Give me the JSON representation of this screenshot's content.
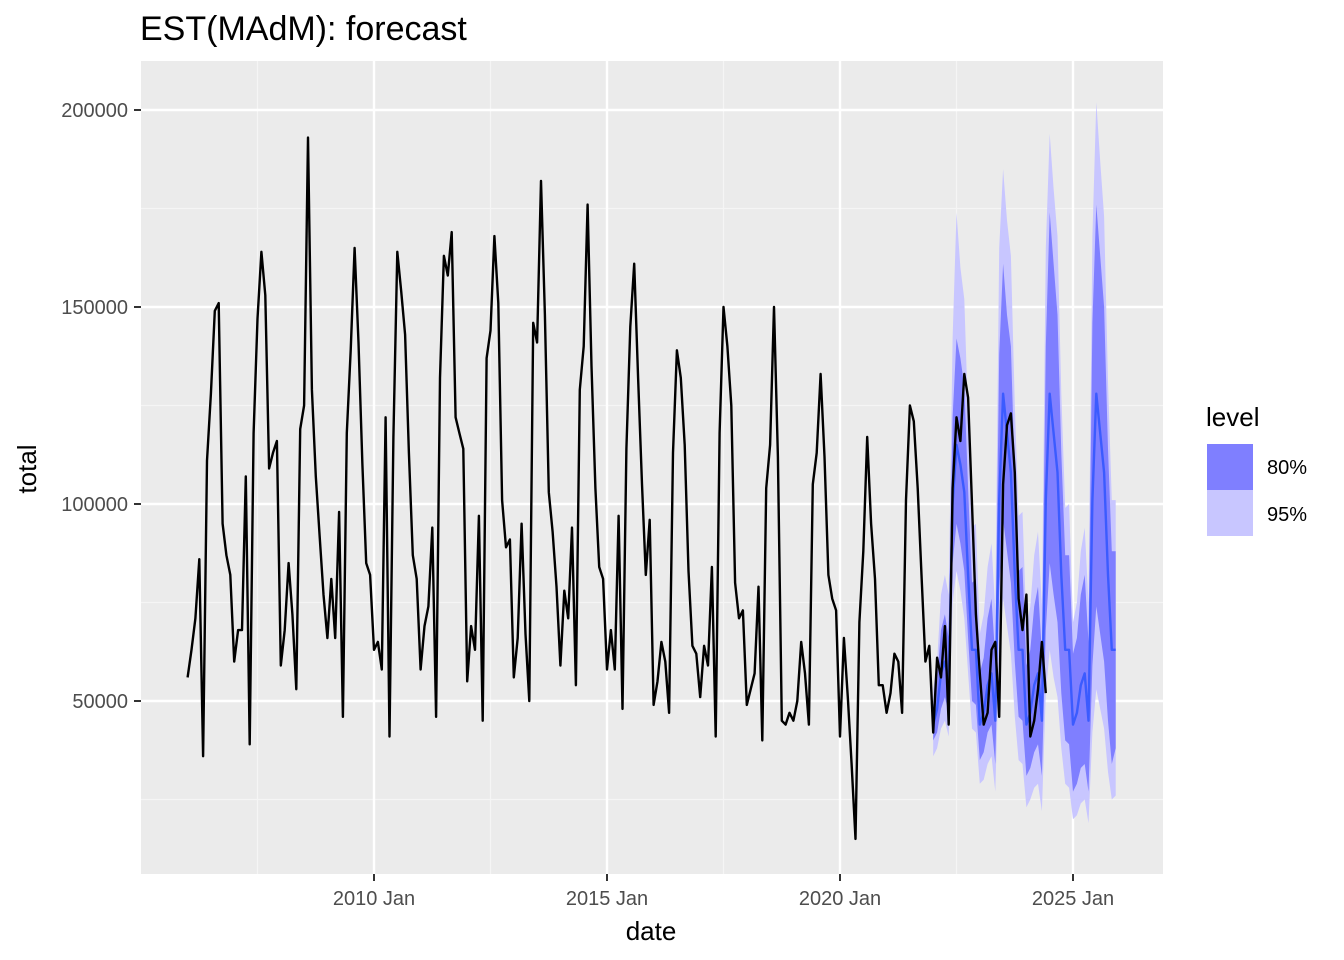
{
  "chart_data": {
    "type": "line",
    "title": "EST(MAdM): forecast",
    "xlabel": "date",
    "ylabel": "total",
    "x_ticks": [
      "2010 Jan",
      "2015 Jan",
      "2020 Jan",
      "2025 Jan"
    ],
    "y_ticks": [
      "50000",
      "100000",
      "150000",
      "200000"
    ],
    "ylim": [
      8000,
      210000
    ],
    "xlim": [
      "2005 Jan",
      "2026 Jun"
    ],
    "grid": true,
    "legend": {
      "title": "level",
      "position": "right",
      "entries": [
        {
          "label": "80%",
          "color": "#7f7fff"
        },
        {
          "label": "95%",
          "color": "#c8c6ff"
        }
      ]
    },
    "colors": {
      "panel": "#ebebeb",
      "grid_major": "#ffffff",
      "grid_minor": "#f5f5f5",
      "history_line": "#000000",
      "forecast_line": "#3b5bff",
      "band_80": "#7f7fff",
      "band_95": "#c8c6ff"
    },
    "history": {
      "start": "2006-01",
      "values": [
        56000,
        63000,
        71000,
        86000,
        36000,
        111000,
        128000,
        149000,
        151000,
        95000,
        87000,
        82000,
        60000,
        68000,
        68000,
        107000,
        39000,
        118000,
        147000,
        164000,
        153000,
        109000,
        113000,
        116000,
        59000,
        68000,
        85000,
        72000,
        53000,
        119000,
        125000,
        193000,
        129000,
        107000,
        92000,
        77000,
        66000,
        81000,
        66000,
        98000,
        46000,
        118000,
        139000,
        165000,
        141000,
        110000,
        85000,
        82000,
        63000,
        65000,
        58000,
        122000,
        41000,
        117000,
        164000,
        154000,
        143000,
        113000,
        87000,
        81000,
        58000,
        69000,
        74000,
        94000,
        46000,
        132000,
        163000,
        158000,
        169000,
        122000,
        118000,
        114000,
        55000,
        69000,
        63000,
        97000,
        45000,
        137000,
        144000,
        168000,
        151000,
        101000,
        89000,
        91000,
        56000,
        66000,
        95000,
        67000,
        50000,
        146000,
        141000,
        182000,
        148000,
        103000,
        93000,
        79000,
        59000,
        78000,
        71000,
        94000,
        54000,
        129000,
        140000,
        176000,
        135000,
        104000,
        84000,
        81000,
        58000,
        68000,
        58000,
        97000,
        48000,
        114000,
        145000,
        161000,
        132000,
        105000,
        82000,
        96000,
        49000,
        55000,
        65000,
        60000,
        47000,
        113000,
        139000,
        132000,
        115000,
        83000,
        64000,
        62000,
        51000,
        64000,
        59000,
        84000,
        41000,
        118000,
        150000,
        140000,
        125000,
        80000,
        71000,
        73000,
        49000,
        53000,
        57000,
        79000,
        40000,
        104000,
        115000,
        150000,
        112000,
        45000,
        44000,
        47000,
        45000,
        50000,
        65000,
        57000,
        44000,
        105000,
        113000,
        133000,
        112000,
        82000,
        76000,
        73000,
        41000,
        66000,
        51000,
        34000,
        15000,
        70000,
        88000,
        117000,
        95000,
        81000,
        54000,
        54000,
        47000,
        52000,
        62000,
        60000,
        47000,
        101000,
        125000,
        121000,
        104000,
        82000,
        60000,
        64000,
        42000,
        61000,
        56000,
        69000,
        44000,
        104000,
        122000,
        116000,
        133000,
        127000,
        100000,
        72000,
        57000,
        44000,
        47000,
        63000,
        65000,
        46000,
        105000,
        120000,
        123000,
        108000,
        76000,
        68000,
        77000,
        41000,
        45000,
        53000,
        65000,
        52000
      ]
    },
    "forecast": {
      "start": "2022-01",
      "mean": [
        44000,
        48000,
        57000,
        60000,
        55000,
        100000,
        115000,
        110000,
        103000,
        82000,
        63000,
        63000,
        44000,
        47000,
        54000,
        57000,
        45000,
        101000,
        128000,
        118000,
        108000,
        82000,
        63000,
        63000,
        44000,
        47000,
        54000,
        57000,
        45000,
        101000,
        128000,
        118000,
        108000,
        82000,
        63000,
        63000,
        44000,
        47000,
        54000,
        57000,
        45000,
        101000,
        128000,
        118000,
        108000,
        82000,
        63000,
        63000
      ],
      "lower80": [
        40000,
        42000,
        48000,
        51000,
        47000,
        85000,
        95000,
        90000,
        83000,
        66000,
        50000,
        49000,
        35000,
        37000,
        42000,
        44000,
        34000,
        78000,
        96000,
        88000,
        80000,
        60000,
        46000,
        45000,
        31000,
        33000,
        37000,
        39000,
        31000,
        68000,
        85000,
        77000,
        70000,
        52000,
        40000,
        39000,
        27000,
        29000,
        33000,
        34000,
        27000,
        59000,
        74000,
        67000,
        60000,
        45000,
        34000,
        38000
      ],
      "upper80": [
        49000,
        55000,
        68000,
        72000,
        66000,
        122000,
        142000,
        137000,
        130000,
        104000,
        80000,
        81000,
        57000,
        61000,
        71000,
        76000,
        61000,
        138000,
        161000,
        148000,
        140000,
        107000,
        83000,
        84000,
        59000,
        63000,
        74000,
        79000,
        62000,
        140000,
        174000,
        161000,
        148000,
        113000,
        87000,
        87000,
        62000,
        66000,
        77000,
        82000,
        65000,
        146000,
        176000,
        163000,
        150000,
        114000,
        88000,
        88000
      ],
      "lower95": [
        36000,
        38000,
        43000,
        45000,
        41000,
        75000,
        83000,
        78000,
        71000,
        57000,
        43000,
        42000,
        29000,
        30000,
        34000,
        36000,
        27000,
        62000,
        76000,
        69000,
        62000,
        46000,
        35000,
        34000,
        23000,
        25000,
        28000,
        29000,
        22000,
        52000,
        63000,
        56000,
        51000,
        38000,
        29000,
        28000,
        20000,
        21000,
        24000,
        25000,
        19000,
        42000,
        53000,
        48000,
        43000,
        32000,
        25000,
        26000
      ],
      "upper95": [
        53000,
        60000,
        77000,
        82000,
        77000,
        142000,
        174000,
        160000,
        152000,
        122000,
        94000,
        95000,
        67000,
        72000,
        84000,
        90000,
        73000,
        165000,
        185000,
        172000,
        163000,
        125000,
        97000,
        98000,
        69000,
        74000,
        87000,
        93000,
        74000,
        165000,
        194000,
        180000,
        168000,
        128000,
        99000,
        100000,
        70000,
        75000,
        88000,
        94000,
        75000,
        168000,
        202000,
        187000,
        173000,
        131000,
        101000,
        101000
      ]
    }
  }
}
